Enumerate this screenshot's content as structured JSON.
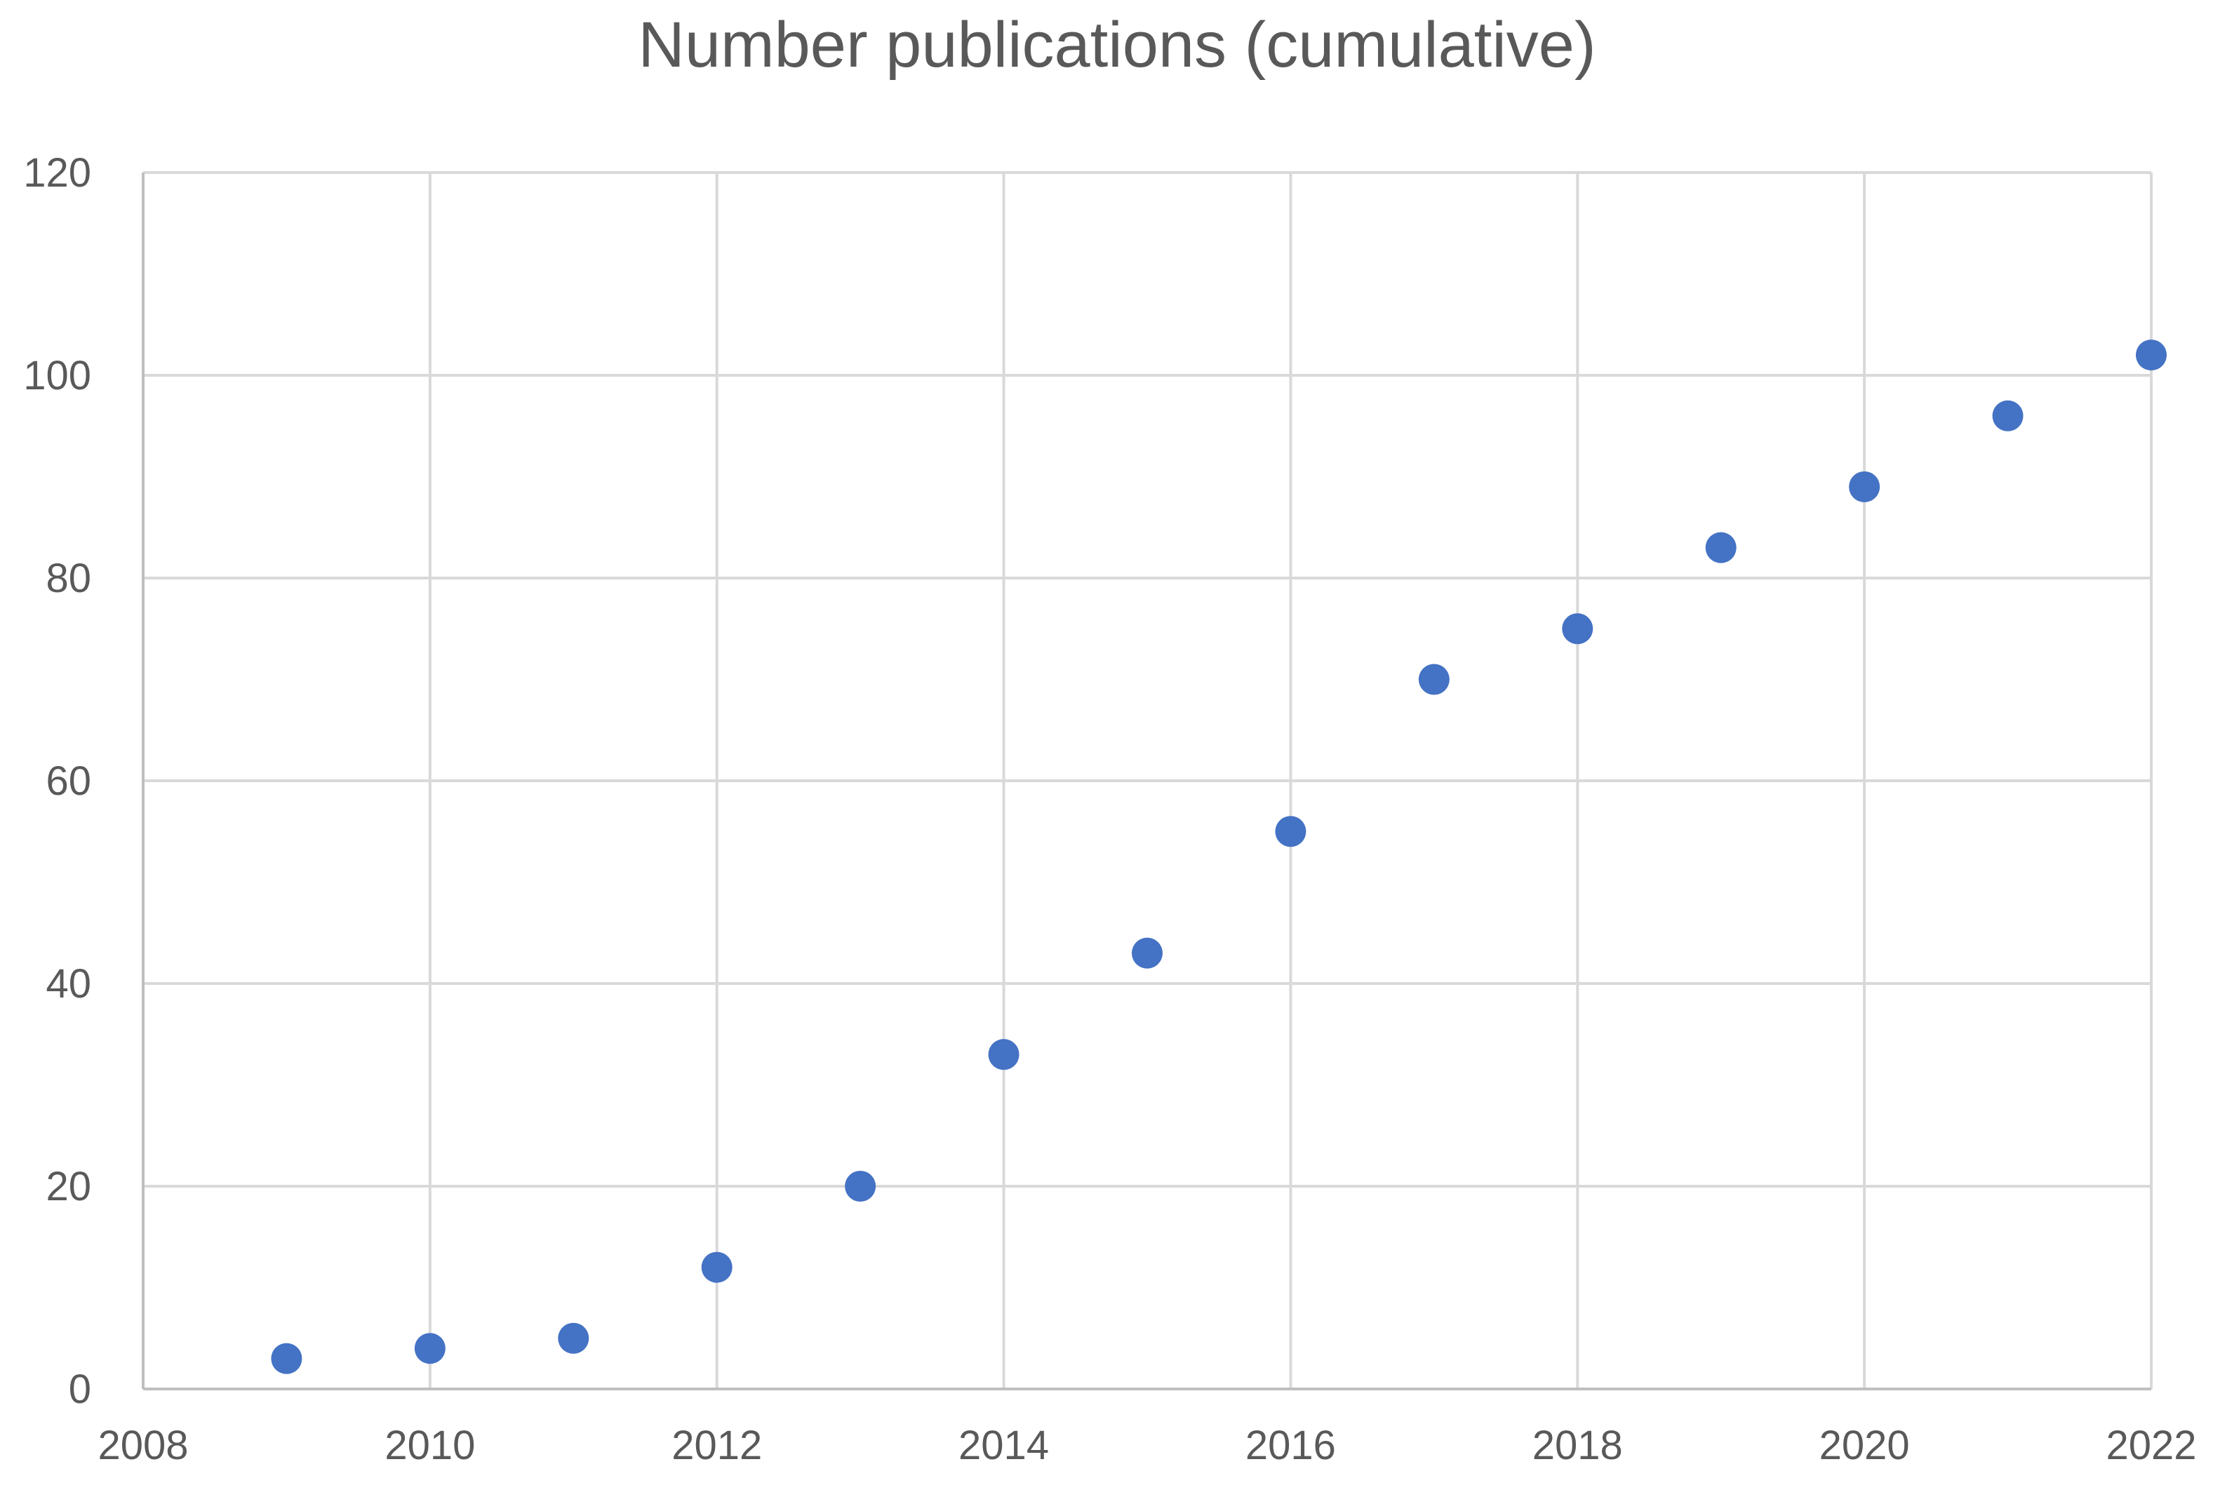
{
  "colors": {
    "background": "#ffffff",
    "title": "#595959",
    "tick_label": "#595959",
    "grid": "#d9d9d9",
    "marker": "#4472c4"
  },
  "chart_data": {
    "type": "scatter",
    "title": "Number publications (cumulative)",
    "xlabel": "",
    "ylabel": "",
    "xlim": [
      2008,
      2022
    ],
    "ylim": [
      0,
      120
    ],
    "x_ticks": [
      2008,
      2010,
      2012,
      2014,
      2016,
      2018,
      2020,
      2022
    ],
    "x_tick_labels": [
      "2008",
      "2010",
      "2012",
      "2014",
      "2016",
      "2018",
      "2020",
      "2022"
    ],
    "y_ticks": [
      0,
      20,
      40,
      60,
      80,
      100,
      120
    ],
    "y_tick_labels": [
      "0",
      "20",
      "40",
      "60",
      "80",
      "100",
      "120"
    ],
    "grid": true,
    "legend": "none",
    "series": [
      {
        "x": [
          2009,
          2010,
          2011,
          2012,
          2013,
          2014,
          2015,
          2016,
          2017,
          2018,
          2019,
          2020,
          2021,
          2022
        ],
        "y": [
          3,
          4,
          5,
          12,
          20,
          33,
          43,
          55,
          70,
          75,
          83,
          89,
          96,
          102
        ]
      }
    ]
  }
}
